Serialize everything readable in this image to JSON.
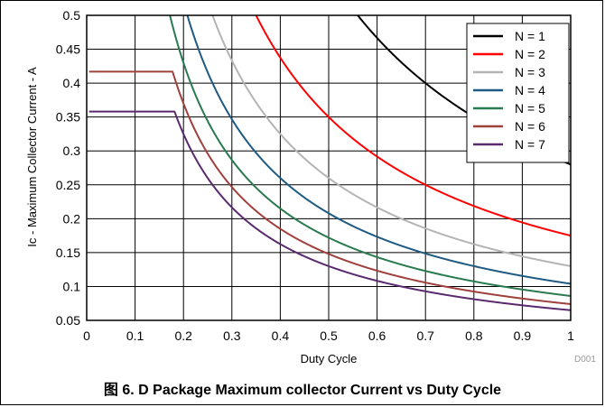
{
  "figure": {
    "caption": "图 6. D Package Maximum collector Current vs Duty Cycle",
    "watermark": "D001"
  },
  "chart_data": {
    "type": "line",
    "title": "",
    "xlabel": "Duty Cycle",
    "ylabel": "Ic - Maximum Collector Current - A",
    "xlim": [
      0,
      1
    ],
    "ylim": [
      0.05,
      0.5
    ],
    "xticks": [
      "0",
      "0.1",
      "0.2",
      "0.3",
      "0.4",
      "0.5",
      "0.6",
      "0.7",
      "0.8",
      "0.9",
      "1"
    ],
    "yticks": [
      "0.05",
      "0.1",
      "0.15",
      "0.2",
      "0.25",
      "0.3",
      "0.35",
      "0.4",
      "0.45",
      "0.5"
    ],
    "grid": true,
    "legend_position": "top-right",
    "model": "Ic = K / (N × D), capped at plateau",
    "series": [
      {
        "name": "N = 1",
        "color": "#000000",
        "K": 0.28,
        "plateau": null
      },
      {
        "name": "N = 2",
        "color": "#ff0000",
        "K": 0.35,
        "plateau": null
      },
      {
        "name": "N = 3",
        "color": "#b4b4b4",
        "K": 0.39,
        "plateau": null
      },
      {
        "name": "N = 4",
        "color": "#1f5a82",
        "K": 0.416,
        "plateau": null
      },
      {
        "name": "N = 5",
        "color": "#2a7a50",
        "K": 0.43,
        "plateau": null
      },
      {
        "name": "N = 6",
        "color": "#a0403c",
        "K": 0.444,
        "plateau": 0.417
      },
      {
        "name": "N = 7",
        "color": "#5a2a6e",
        "K": 0.455,
        "plateau": 0.358
      }
    ]
  }
}
